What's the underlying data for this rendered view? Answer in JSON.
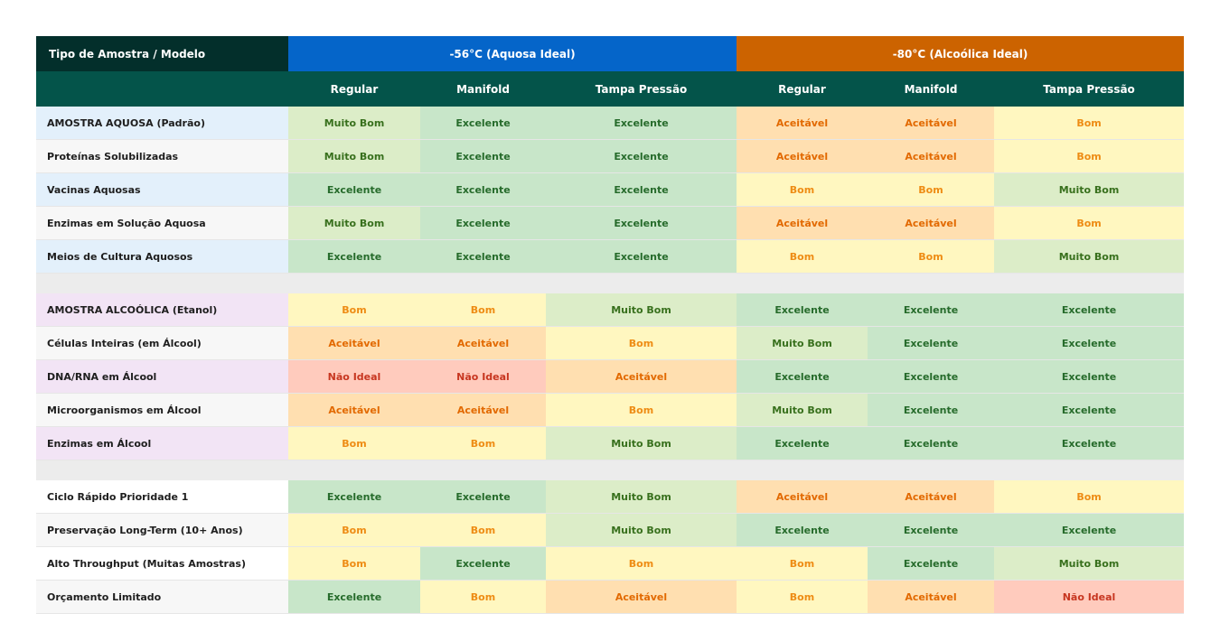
{
  "header": {
    "corner_label": "Tipo de Amostra / Modelo",
    "groups": [
      "-56°C (Aquosa Ideal)",
      "-80°C (Alcoólica Ideal)"
    ],
    "subcolumns": [
      "Regular",
      "Manifold",
      "Tampa Pressão",
      "Regular",
      "Manifold",
      "Tampa Pressão"
    ]
  },
  "rating_colors": {
    "Excelente": {
      "bg": "#c8e6c9",
      "fg": "#266b2b"
    },
    "Muito Bom": {
      "bg": "#dcedc8",
      "fg": "#38701d"
    },
    "Bom": {
      "bg": "#fff7c0",
      "fg": "#ee8c14"
    },
    "Aceitável": {
      "bg": "#ffdfb0",
      "fg": "#e26900"
    },
    "Não Ideal": {
      "bg": "#ffcbbd",
      "fg": "#c73620"
    }
  },
  "sections": [
    {
      "rows": [
        {
          "label": "AMOSTRA AQUOSA (Padrão)",
          "values": [
            "Muito Bom",
            "Excelente",
            "Excelente",
            "Aceitável",
            "Aceitável",
            "Bom"
          ]
        },
        {
          "label": "Proteínas Solubilizadas",
          "values": [
            "Muito Bom",
            "Excelente",
            "Excelente",
            "Aceitável",
            "Aceitável",
            "Bom"
          ]
        },
        {
          "label": "Vacinas Aquosas",
          "values": [
            "Excelente",
            "Excelente",
            "Excelente",
            "Bom",
            "Bom",
            "Muito Bom"
          ]
        },
        {
          "label": "Enzimas em Solução Aquosa",
          "values": [
            "Muito Bom",
            "Excelente",
            "Excelente",
            "Aceitável",
            "Aceitável",
            "Bom"
          ]
        },
        {
          "label": "Meios de Cultura Aquosos",
          "values": [
            "Excelente",
            "Excelente",
            "Excelente",
            "Bom",
            "Bom",
            "Muito Bom"
          ]
        }
      ]
    },
    {
      "rows": [
        {
          "label": "AMOSTRA ALCOÓLICA (Etanol)",
          "values": [
            "Bom",
            "Bom",
            "Muito Bom",
            "Excelente",
            "Excelente",
            "Excelente"
          ]
        },
        {
          "label": "Células Inteiras (em Álcool)",
          "values": [
            "Aceitável",
            "Aceitável",
            "Bom",
            "Muito Bom",
            "Excelente",
            "Excelente"
          ]
        },
        {
          "label": "DNA/RNA em Álcool",
          "values": [
            "Não Ideal",
            "Não Ideal",
            "Aceitável",
            "Excelente",
            "Excelente",
            "Excelente"
          ]
        },
        {
          "label": "Microorganismos em Álcool",
          "values": [
            "Aceitável",
            "Aceitável",
            "Bom",
            "Muito Bom",
            "Excelente",
            "Excelente"
          ]
        },
        {
          "label": "Enzimas em Álcool",
          "values": [
            "Bom",
            "Bom",
            "Muito Bom",
            "Excelente",
            "Excelente",
            "Excelente"
          ]
        }
      ]
    },
    {
      "rows": [
        {
          "label": "Ciclo Rápido Prioridade 1",
          "values": [
            "Excelente",
            "Excelente",
            "Muito Bom",
            "Aceitável",
            "Aceitável",
            "Bom"
          ]
        },
        {
          "label": "Preservação Long-Term (10+ Anos)",
          "values": [
            "Bom",
            "Bom",
            "Muito Bom",
            "Excelente",
            "Excelente",
            "Excelente"
          ]
        },
        {
          "label": "Alto Throughput (Muitas Amostras)",
          "values": [
            "Bom",
            "Excelente",
            "Bom",
            "Bom",
            "Excelente",
            "Muito Bom"
          ]
        },
        {
          "label": "Orçamento Limitado",
          "values": [
            "Excelente",
            "Bom",
            "Aceitável",
            "Bom",
            "Aceitável",
            "Não Ideal"
          ]
        }
      ]
    }
  ]
}
